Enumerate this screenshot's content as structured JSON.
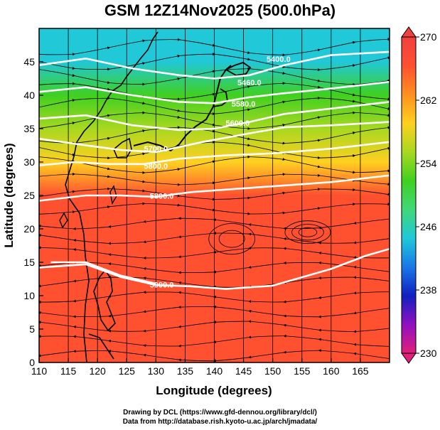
{
  "title": "GSM 12Z14Nov2025 (500.0hPa)",
  "colorbar_label_unit": "",
  "credits": {
    "line1": "Drawing by DCL (https://www.gfd-dennou.org/library/dcl/)",
    "line2": "Data from http://database.rish.kyoto-u.ac.jp/arch/jmadata/"
  },
  "colors": {
    "frame": "#000000",
    "contour": "#ffffff",
    "coast": "#000000"
  },
  "chart_data": {
    "type": "heatmap",
    "title": "GSM 12Z14Nov2025 (500.0hPa)",
    "xlabel": "Longitude (degrees)",
    "ylabel": "Latitude  (degrees)",
    "xlim": [
      110,
      170
    ],
    "ylim": [
      0,
      50
    ],
    "x_ticks": [
      110,
      115,
      120,
      125,
      130,
      135,
      140,
      145,
      150,
      155,
      160,
      165
    ],
    "y_ticks": [
      0,
      5,
      10,
      15,
      20,
      25,
      30,
      35,
      40,
      45
    ],
    "colorbar": {
      "ticks": [
        230,
        238,
        246,
        254,
        262,
        270
      ],
      "range": [
        230,
        270
      ],
      "stops": [
        "#e0207a",
        "#9010c0",
        "#1020c0",
        "#1878e8",
        "#20c8d8",
        "#40d878",
        "#40d020",
        "#a8d820",
        "#ffd020",
        "#ff9020",
        "#ff5030",
        "#f04040"
      ]
    },
    "temperature_field_rows": [
      {
        "lat": 50,
        "value": 243
      },
      {
        "lat": 45,
        "value": 246
      },
      {
        "lat": 40,
        "value": 251
      },
      {
        "lat": 35,
        "value": 255
      },
      {
        "lat": 30,
        "value": 260
      },
      {
        "lat": 25,
        "value": 266
      },
      {
        "lat": 20,
        "value": 268
      },
      {
        "lat": 15,
        "value": 268
      },
      {
        "lat": 10,
        "value": 268
      },
      {
        "lat": 5,
        "value": 268
      },
      {
        "lat": 0,
        "value": 268
      }
    ],
    "contours": [
      {
        "label": "5400.0",
        "points": [
          [
            110,
            44.5
          ],
          [
            118,
            45.5
          ],
          [
            126,
            44
          ],
          [
            134,
            43
          ],
          [
            140,
            42.5
          ],
          [
            146,
            43
          ],
          [
            152,
            44.5
          ],
          [
            160,
            46
          ],
          [
            170,
            46.5
          ]
        ],
        "label_at": [
          151,
          45
        ]
      },
      {
        "label": "5460.0",
        "points": [
          [
            110,
            40.5
          ],
          [
            118,
            41.2
          ],
          [
            126,
            40
          ],
          [
            134,
            39
          ],
          [
            140,
            38.8
          ],
          [
            146,
            39.7
          ],
          [
            152,
            40.3
          ],
          [
            160,
            41
          ],
          [
            170,
            42
          ]
        ],
        "label_at": [
          146,
          41.5
        ]
      },
      {
        "label": "5580.0",
        "points": [
          [
            110,
            36.5
          ],
          [
            118,
            37
          ],
          [
            126,
            35.5
          ],
          [
            134,
            34.8
          ],
          [
            140,
            35
          ],
          [
            146,
            36
          ],
          [
            152,
            37.2
          ],
          [
            160,
            38
          ],
          [
            170,
            39
          ]
        ],
        "label_at": [
          145,
          38.3
        ]
      },
      {
        "label": "5600.0",
        "points": [
          [
            110,
            33.5
          ],
          [
            118,
            32.5
          ],
          [
            124,
            31.8
          ],
          [
            130,
            31.5
          ],
          [
            138,
            33
          ],
          [
            146,
            34.3
          ],
          [
            152,
            35.2
          ],
          [
            160,
            35.5
          ],
          [
            170,
            36
          ]
        ],
        "label_at": [
          144,
          35.4
        ]
      },
      {
        "label": "5700.0",
        "points": [
          [
            110,
            29.5
          ],
          [
            116,
            30
          ],
          [
            122,
            29.7
          ],
          [
            128,
            29.7
          ],
          [
            134,
            30.5
          ],
          [
            142,
            31
          ],
          [
            150,
            31.3
          ],
          [
            160,
            32
          ],
          [
            170,
            33
          ]
        ],
        "label_at": [
          130,
          31.6
        ]
      },
      {
        "label": "5800.0",
        "points": [
          [
            110,
            24.2
          ],
          [
            118,
            25
          ],
          [
            124,
            25
          ],
          [
            130,
            24.8
          ],
          [
            136,
            25.5
          ],
          [
            144,
            26
          ],
          [
            152,
            26.5
          ],
          [
            160,
            27
          ],
          [
            170,
            28
          ]
        ],
        "label_at": [
          130,
          29
        ]
      },
      {
        "label": "5800.0",
        "points": [
          [
            110,
            14.2
          ],
          [
            118,
            14.7
          ],
          [
            124,
            12.8
          ],
          [
            130,
            11.6
          ],
          [
            136,
            11.4
          ],
          [
            142,
            11
          ],
          [
            150,
            11.5
          ],
          [
            160,
            14
          ],
          [
            166,
            16
          ],
          [
            170,
            17
          ]
        ],
        "label_at": [
          131,
          24.5
        ]
      },
      {
        "label": "5900.0",
        "points": [
          [
            112,
            15
          ],
          [
            118,
            15
          ],
          [
            124,
            13
          ],
          [
            130,
            11.8
          ]
        ],
        "label_at": [
          131,
          11.2
        ]
      }
    ],
    "streamline_field": "mid-latitude westerlies north of ~28N; weaker easterly trades south of ~20N with anticyclonic circulation near 150-158E, 22N"
  }
}
